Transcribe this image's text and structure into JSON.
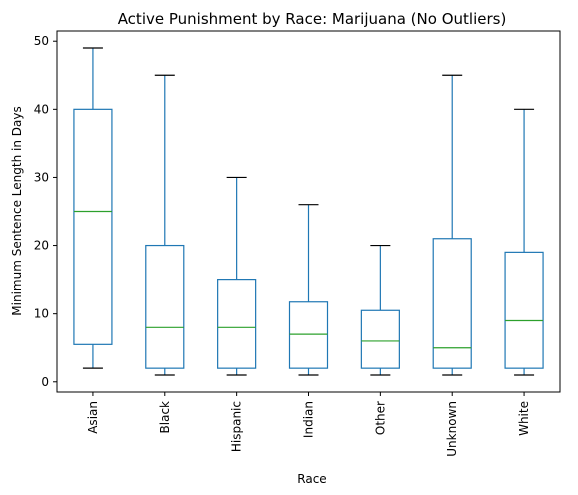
{
  "chart_data": {
    "type": "box",
    "title": "Active Punishment by Race: Marijuana (No Outliers)",
    "xlabel": "Race",
    "ylabel": "Minimum Sentence Length in Days",
    "ylim": [
      -1.5,
      51.5
    ],
    "yticks": [
      0,
      10,
      20,
      30,
      40,
      50
    ],
    "grid": false,
    "categories": [
      "Asian",
      "Black",
      "Hispanic",
      "Indian",
      "Other",
      "Unknown",
      "White"
    ],
    "boxes": [
      {
        "category": "Asian",
        "whisker_low": 2,
        "q1": 5.5,
        "median": 25,
        "q3": 40,
        "whisker_high": 49
      },
      {
        "category": "Black",
        "whisker_low": 1,
        "q1": 2,
        "median": 8,
        "q3": 20,
        "whisker_high": 45
      },
      {
        "category": "Hispanic",
        "whisker_low": 1,
        "q1": 2,
        "median": 8,
        "q3": 15,
        "whisker_high": 30
      },
      {
        "category": "Indian",
        "whisker_low": 1,
        "q1": 2,
        "median": 7,
        "q3": 11.75,
        "whisker_high": 26
      },
      {
        "category": "Other",
        "whisker_low": 1,
        "q1": 2,
        "median": 6,
        "q3": 10.5,
        "whisker_high": 20
      },
      {
        "category": "Unknown",
        "whisker_low": 1,
        "q1": 2,
        "median": 5,
        "q3": 21,
        "whisker_high": 45
      },
      {
        "category": "White",
        "whisker_low": 1,
        "q1": 2,
        "median": 9,
        "q3": 19,
        "whisker_high": 40
      }
    ],
    "colors": {
      "box": "#1f77b4",
      "median": "#2ca02c",
      "cap": "#000000"
    }
  }
}
